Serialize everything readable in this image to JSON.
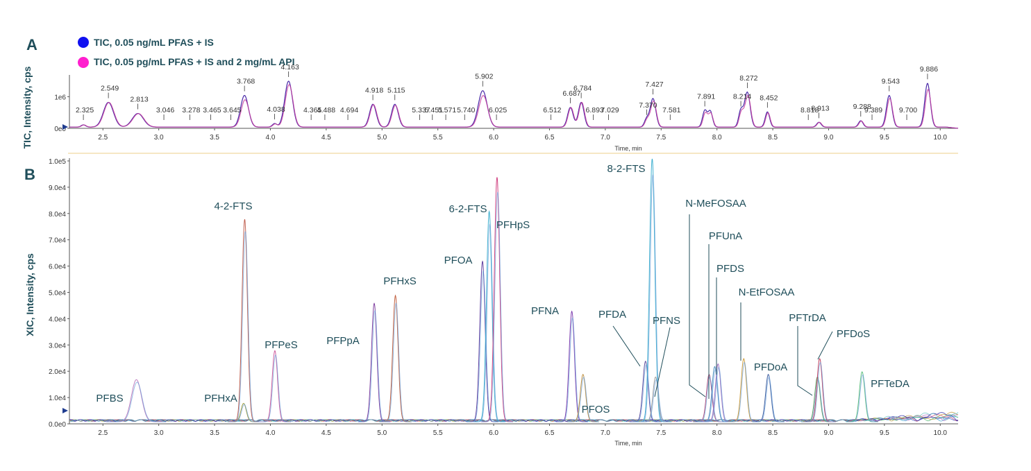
{
  "panel_a_letter": "A",
  "panel_b_letter": "B",
  "legend": [
    {
      "label": "TIC, 0.05 ng/mL PFAS + IS",
      "color": "#1010f0"
    },
    {
      "label": "TIC, 0.05 pg/mL PFAS + IS and 2 mg/mL API",
      "color": "#ff1fce"
    }
  ],
  "colors": {
    "axis": "#333333",
    "text_accent": "#1f4e5a",
    "separator": "#f3dfb0",
    "marker": "#1f3c8f"
  },
  "chart_data": [
    {
      "type": "line",
      "panel": "A",
      "xlabel": "Time, min",
      "ylabel": "TIC, Intensity, cps",
      "xlim": [
        2.2,
        10.16
      ],
      "ylim": [
        0,
        1600000
      ],
      "x_ticks": [
        "2.5",
        "3.0",
        "3.5",
        "4.0",
        "4.5",
        "5.0",
        "5.5",
        "6.0",
        "6.5",
        "7.0",
        "7.5",
        "8.0",
        "8.5",
        "9.0",
        "9.5",
        "10.0"
      ],
      "y_ticks": [
        {
          "value": 0,
          "label": "0e0"
        },
        {
          "value": 1000000,
          "label": "1e6"
        }
      ],
      "series": [
        {
          "name": "TIC, 0.05 ng/mL PFAS + IS",
          "color": "#4a2aa8"
        },
        {
          "name": "TIC, 0.05 pg/mL PFAS + IS and 2 mg/mL API",
          "color": "#c43fa0"
        }
      ],
      "peaks": [
        {
          "rt": 2.325,
          "label": "2.325",
          "h": 70000,
          "w": 0.02
        },
        {
          "rt": 2.549,
          "label": "2.549",
          "h": 780000,
          "w": 0.045
        },
        {
          "rt": 2.813,
          "label": "2.813",
          "h": 430000,
          "w": 0.05
        },
        {
          "rt": 3.046,
          "label": "3.046",
          "h": 0,
          "w": 0.02
        },
        {
          "rt": 3.278,
          "label": "3.278",
          "h": 0,
          "w": 0.02
        },
        {
          "rt": 3.465,
          "label": "3.465",
          "h": 0,
          "w": 0.02
        },
        {
          "rt": 3.645,
          "label": "3.645",
          "h": 0,
          "w": 0.02
        },
        {
          "rt": 3.768,
          "label": "3.768",
          "h": 1000000,
          "w": 0.035
        },
        {
          "rt": 4.038,
          "label": "4.038",
          "h": 110000,
          "w": 0.02
        },
        {
          "rt": 4.163,
          "label": "4.163",
          "h": 1450000,
          "w": 0.035
        },
        {
          "rt": 4.365,
          "label": "4.365",
          "h": 0,
          "w": 0.02
        },
        {
          "rt": 4.488,
          "label": "4.488",
          "h": 0,
          "w": 0.02
        },
        {
          "rt": 4.694,
          "label": "4.694",
          "h": 0,
          "w": 0.02
        },
        {
          "rt": 4.918,
          "label": "4.918",
          "h": 720000,
          "w": 0.03
        },
        {
          "rt": 5.115,
          "label": "5.115",
          "h": 720000,
          "w": 0.03
        },
        {
          "rt": 5.337,
          "label": "5.337",
          "h": 0,
          "w": 0.02
        },
        {
          "rt": 5.451,
          "label": "5.451",
          "h": 0,
          "w": 0.02
        },
        {
          "rt": 5.571,
          "label": "5.571",
          "h": 0,
          "w": 0.02
        },
        {
          "rt": 5.74,
          "label": "5.740",
          "h": 0,
          "w": 0.02
        },
        {
          "rt": 5.902,
          "label": "5.902",
          "h": 1150000,
          "w": 0.04
        },
        {
          "rt": 6.025,
          "label": "6.025",
          "h": 0,
          "w": 0.02
        },
        {
          "rt": 6.512,
          "label": "6.512",
          "h": 0,
          "w": 0.02
        },
        {
          "rt": 6.687,
          "label": "6.687",
          "h": 620000,
          "w": 0.025
        },
        {
          "rt": 6.784,
          "label": "6.784",
          "h": 780000,
          "w": 0.025
        },
        {
          "rt": 6.893,
          "label": "6.893",
          "h": 0,
          "w": 0.02
        },
        {
          "rt": 7.029,
          "label": "7.029",
          "h": 0,
          "w": 0.02
        },
        {
          "rt": 7.37,
          "label": "7.370",
          "h": 250000,
          "w": 0.02
        },
        {
          "rt": 7.427,
          "label": "7.427",
          "h": 900000,
          "w": 0.025
        },
        {
          "rt": 7.581,
          "label": "7.581",
          "h": 0,
          "w": 0.02
        },
        {
          "rt": 7.891,
          "label": "7.891",
          "h": 520000,
          "w": 0.02
        },
        {
          "rt": 7.94,
          "label": "",
          "h": 500000,
          "w": 0.02
        },
        {
          "rt": 8.214,
          "label": "8.214",
          "h": 520000,
          "w": 0.02
        },
        {
          "rt": 8.272,
          "label": "8.272",
          "h": 1100000,
          "w": 0.025
        },
        {
          "rt": 8.452,
          "label": "8.452",
          "h": 480000,
          "w": 0.02
        },
        {
          "rt": 8.818,
          "label": "8.818",
          "h": 0,
          "w": 0.02
        },
        {
          "rt": 8.913,
          "label": "8.913",
          "h": 150000,
          "w": 0.02
        },
        {
          "rt": 9.288,
          "label": "9.288",
          "h": 200000,
          "w": 0.02
        },
        {
          "rt": 9.389,
          "label": "9.389",
          "h": 0,
          "w": 0.02
        },
        {
          "rt": 9.543,
          "label": "9.543",
          "h": 1000000,
          "w": 0.025
        },
        {
          "rt": 9.7,
          "label": "9.700",
          "h": 0,
          "w": 0.02
        },
        {
          "rt": 9.886,
          "label": "9.886",
          "h": 1380000,
          "w": 0.025
        }
      ]
    },
    {
      "type": "line",
      "panel": "B",
      "xlabel": "Time, min",
      "ylabel": "XIC, Intensity, cps",
      "xlim": [
        2.2,
        10.16
      ],
      "ylim": [
        0,
        100000
      ],
      "x_ticks": [
        "2.5",
        "3.0",
        "3.5",
        "4.0",
        "4.5",
        "5.0",
        "5.5",
        "6.0",
        "6.5",
        "7.0",
        "7.5",
        "8.0",
        "8.5",
        "9.0",
        "9.5",
        "10.0"
      ],
      "y_ticks": [
        {
          "value": 0,
          "label": "0.0e0"
        },
        {
          "value": 10000,
          "label": "1.0e4"
        },
        {
          "value": 20000,
          "label": "2.0e4"
        },
        {
          "value": 30000,
          "label": "3.0e4"
        },
        {
          "value": 40000,
          "label": "4.0e4"
        },
        {
          "value": 50000,
          "label": "5.0e4"
        },
        {
          "value": 60000,
          "label": "6.0e4"
        },
        {
          "value": 70000,
          "label": "7.0e4"
        },
        {
          "value": 80000,
          "label": "8.0e4"
        },
        {
          "value": 90000,
          "label": "9.0e4"
        },
        {
          "value": 100000,
          "label": "1.0e5"
        }
      ],
      "compounds": [
        {
          "name": "PFBS",
          "rt": 2.8,
          "h": 16000,
          "color": "#c080c0"
        },
        {
          "name": "PFHxA",
          "rt": 3.76,
          "h": 7000,
          "color": "#a0a040"
        },
        {
          "name": "4-2-FTS",
          "rt": 3.77,
          "h": 77000,
          "color": "#c06050"
        },
        {
          "name": "PFPeS",
          "rt": 4.04,
          "h": 27000,
          "color": "#d060a0"
        },
        {
          "name": "PFPpA",
          "rt": 4.93,
          "h": 45000,
          "color": "#8040a0"
        },
        {
          "name": "PFHxS",
          "rt": 5.12,
          "h": 48000,
          "color": "#c06040"
        },
        {
          "name": "PFOA",
          "rt": 5.9,
          "h": 61000,
          "color": "#6040a0"
        },
        {
          "name": "6-2-FTS",
          "rt": 5.96,
          "h": 80000,
          "color": "#40b0d0"
        },
        {
          "name": "PFHpS",
          "rt": 6.03,
          "h": 93000,
          "color": "#d04080"
        },
        {
          "name": "PFNA",
          "rt": 6.7,
          "h": 42000,
          "color": "#8040b0"
        },
        {
          "name": "PFOS",
          "rt": 6.8,
          "h": 18000,
          "color": "#c09040"
        },
        {
          "name": "PFDA",
          "rt": 7.36,
          "h": 23000,
          "color": "#6050a0"
        },
        {
          "name": "8-2-FTS",
          "rt": 7.42,
          "h": 100000,
          "color": "#40b0d0"
        },
        {
          "name": "PFNS",
          "rt": 7.45,
          "h": 17000,
          "color": "#a0a0a0"
        },
        {
          "name": "N-MeFOSAA",
          "rt": 7.93,
          "h": 18000,
          "color": "#b05080"
        },
        {
          "name": "PFUnA",
          "rt": 7.98,
          "h": 21000,
          "color": "#5090c0"
        },
        {
          "name": "PFDS",
          "rt": 8.01,
          "h": 22000,
          "color": "#a070c0"
        },
        {
          "name": "N-EtFOSAA",
          "rt": 8.24,
          "h": 24000,
          "color": "#d0a040"
        },
        {
          "name": "PFDoA",
          "rt": 8.46,
          "h": 18000,
          "color": "#4060a0"
        },
        {
          "name": "PFTrDA",
          "rt": 8.9,
          "h": 17000,
          "color": "#60a060"
        },
        {
          "name": "PFDoS",
          "rt": 8.92,
          "h": 24000,
          "color": "#c04060"
        },
        {
          "name": "PFTeDA",
          "rt": 9.3,
          "h": 19000,
          "color": "#60c080"
        }
      ]
    }
  ]
}
